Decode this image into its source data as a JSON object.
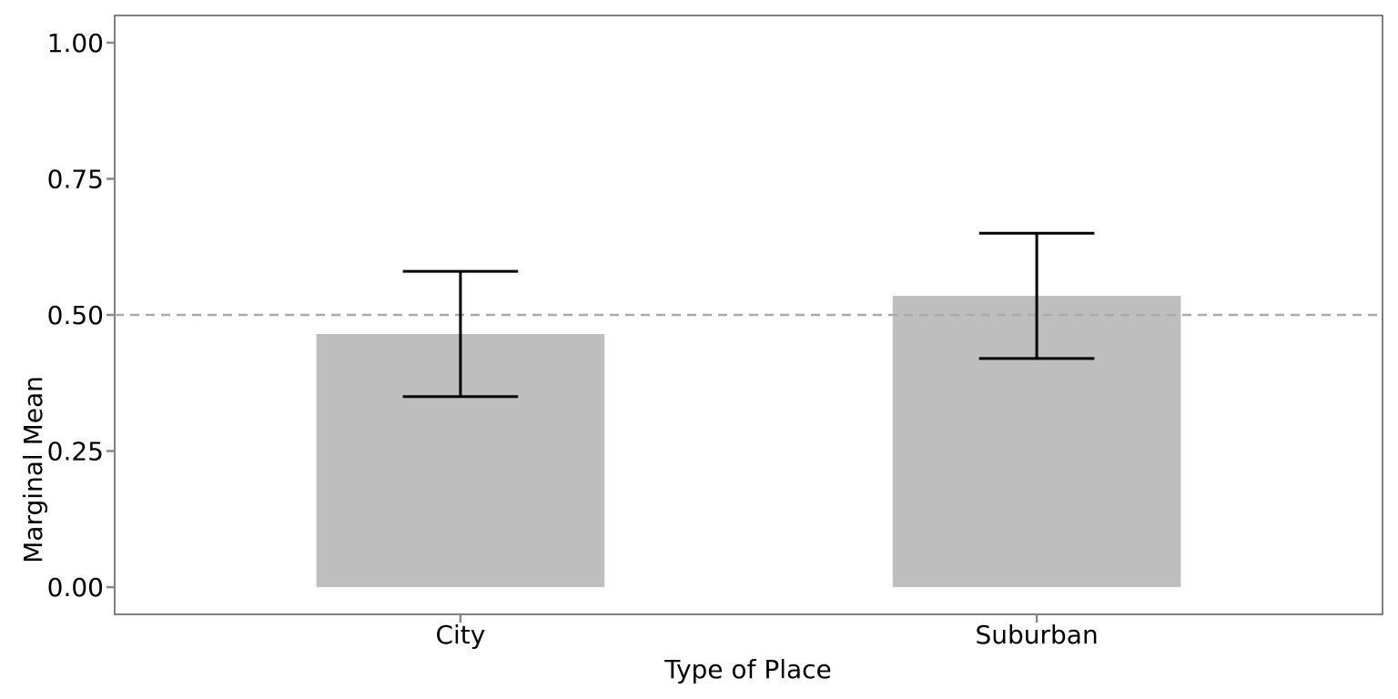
{
  "chart_data": {
    "type": "bar",
    "title": "",
    "xlabel": "Type of Place",
    "ylabel": "Marginal Mean",
    "categories": [
      "City",
      "Suburban"
    ],
    "values": [
      0.465,
      0.535
    ],
    "error_bars": {
      "lower": [
        0.35,
        0.42
      ],
      "upper": [
        0.58,
        0.65
      ]
    },
    "ylim": [
      -0.05,
      1.05
    ],
    "yticks": [
      0,
      0.25,
      0.5,
      0.75,
      1
    ],
    "ytick_labels": [
      "0.00",
      "0.25",
      "0.50",
      "0.75",
      "1.00"
    ],
    "reference_line": {
      "y": 0.5,
      "style": "dashed",
      "color": "#aaaaaa"
    },
    "bar_color": "#bebebe",
    "errorbar_color": "#000000",
    "grid": false,
    "legend": "none"
  }
}
